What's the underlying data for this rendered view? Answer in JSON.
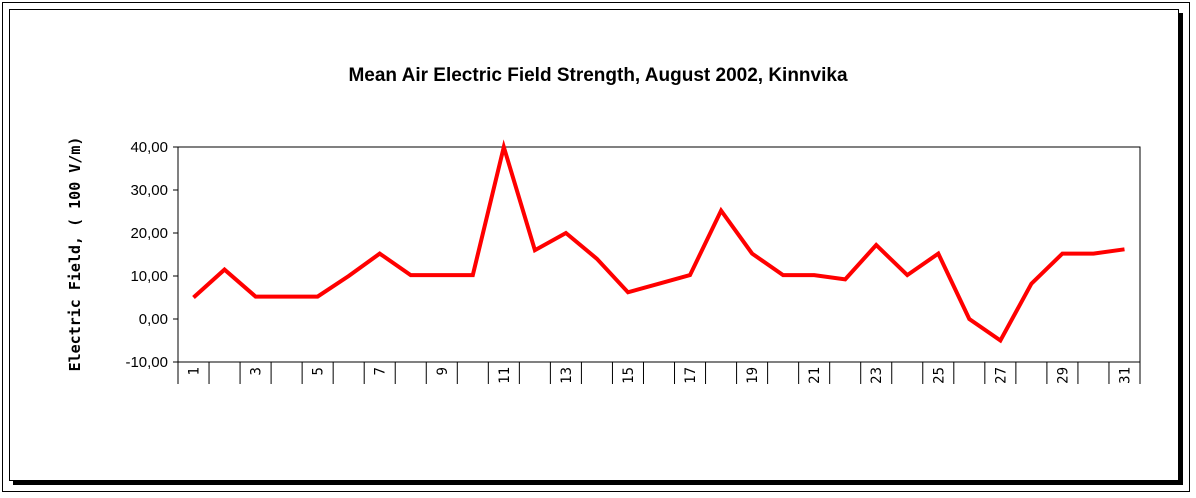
{
  "chart_data": {
    "type": "line",
    "title": "Mean Air Electric Field Strength, August 2002, Kinnvika",
    "xlabel": "",
    "ylabel": "Electric Field, ( 100 V/m)",
    "ylim": [
      -10,
      40
    ],
    "yticks": [
      "-10,00",
      "0,00",
      "10,00",
      "20,00",
      "30,00",
      "40,00"
    ],
    "xtick_labels": [
      "1",
      "3",
      "5",
      "7",
      "9",
      "11",
      "13",
      "15",
      "17",
      "19",
      "21",
      "23",
      "25",
      "27",
      "29",
      "31"
    ],
    "grid": false,
    "legend": "none",
    "series": [
      {
        "color": "#ff0000",
        "x": [
          1,
          2,
          3,
          4,
          5,
          6,
          7,
          8,
          9,
          10,
          11,
          12,
          13,
          14,
          15,
          16,
          17,
          18,
          19,
          20,
          21,
          22,
          23,
          24,
          25,
          26,
          27,
          28,
          29,
          30,
          31
        ],
        "values": [
          5,
          11.5,
          5.2,
          5.2,
          5.2,
          10,
          15.2,
          10.2,
          10.2,
          10.2,
          40,
          16,
          20,
          14,
          6.2,
          8.2,
          10.2,
          25.2,
          15.2,
          10.2,
          10.2,
          9.2,
          17.2,
          10.2,
          15.2,
          0,
          -5,
          8.2,
          15.2,
          15.2,
          16.2
        ]
      }
    ]
  }
}
